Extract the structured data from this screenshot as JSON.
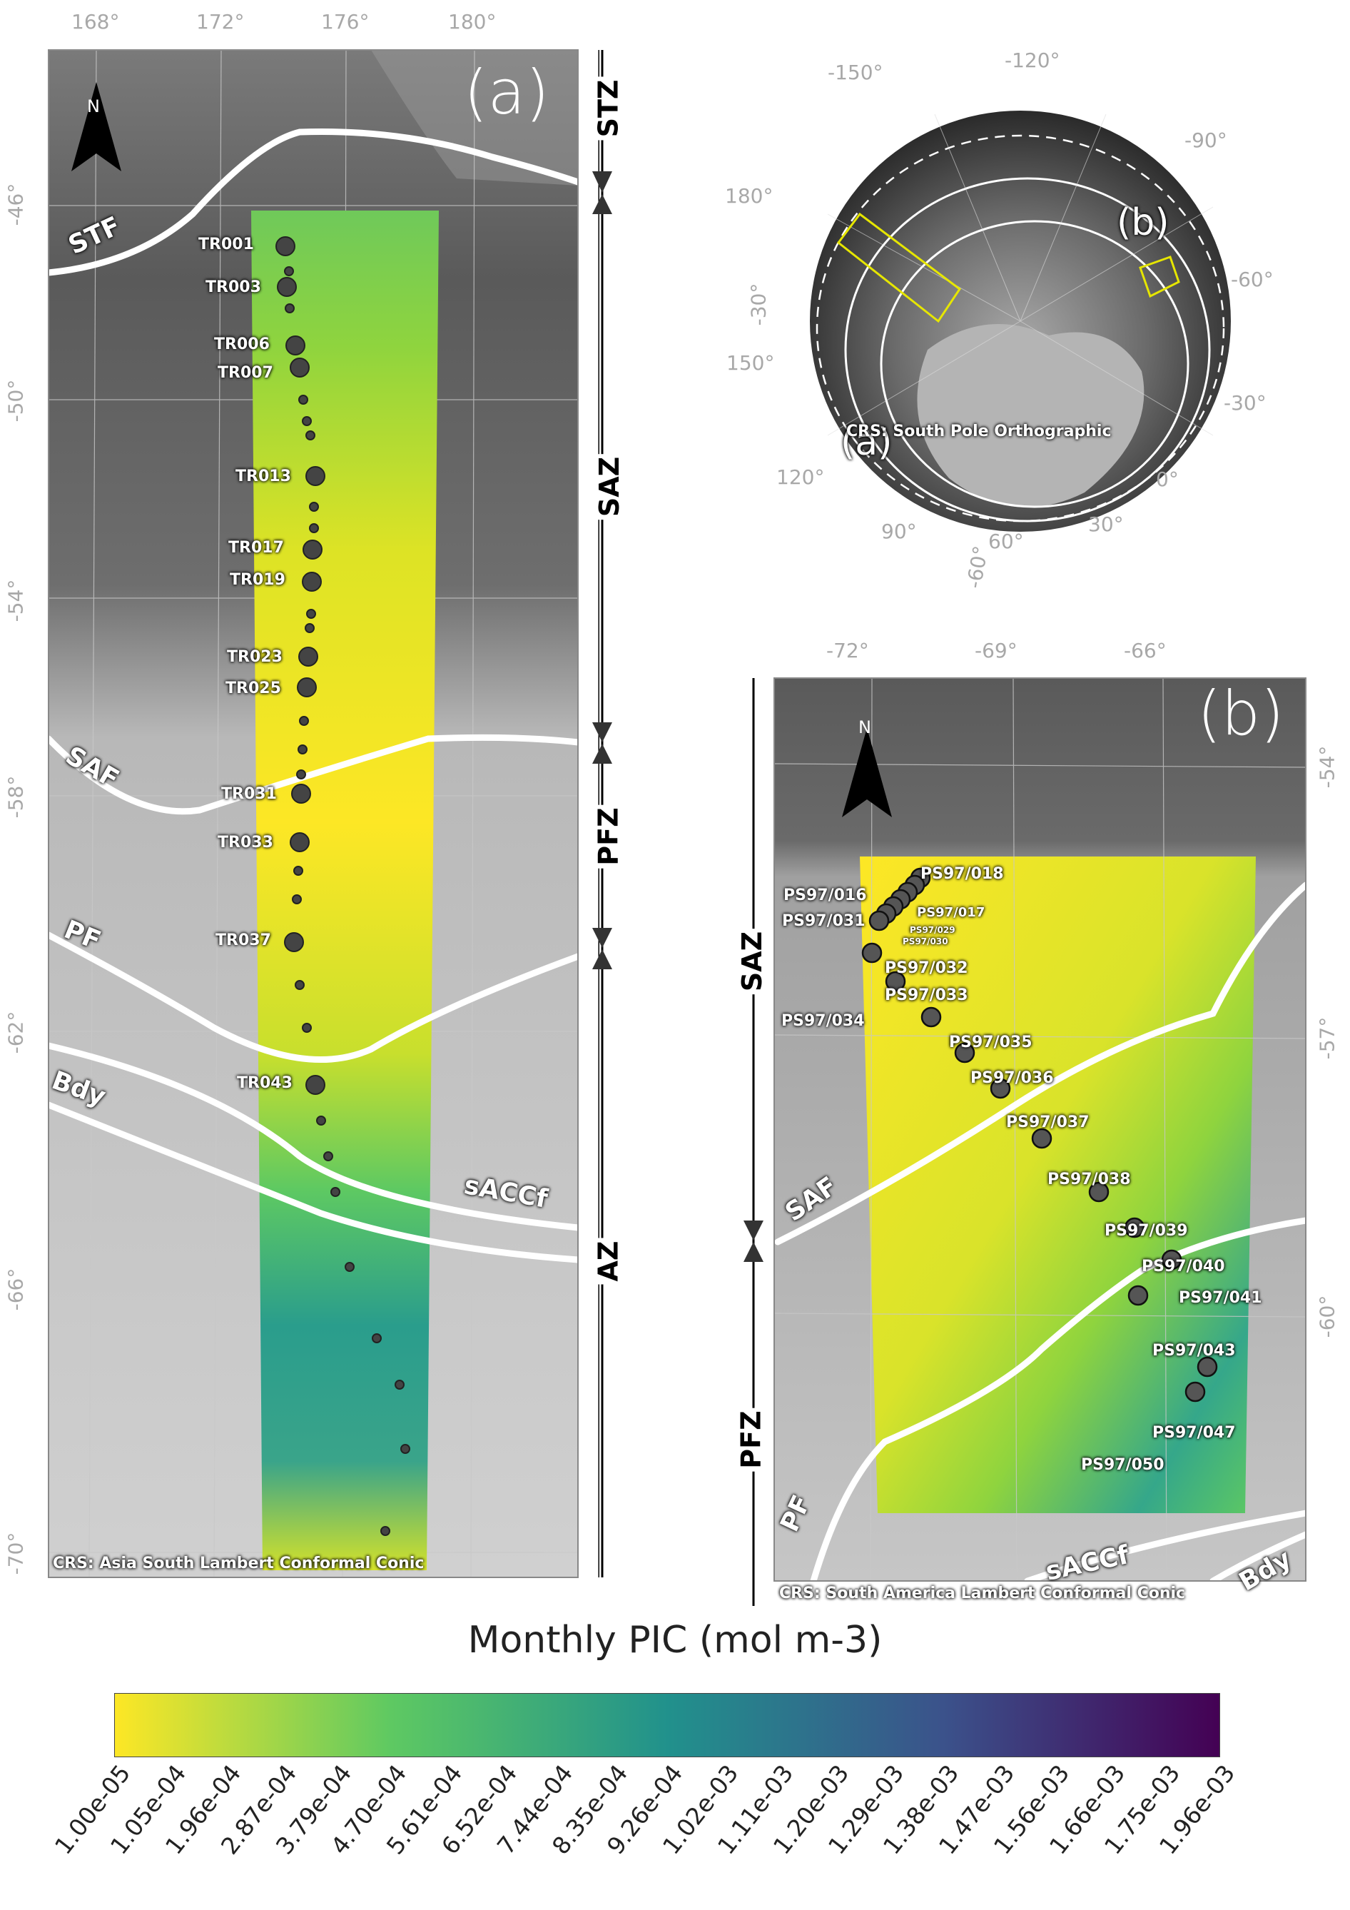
{
  "panel_a": {
    "letter": "(a)",
    "crs": "CRS: Asia South Lambert Conformal Conic",
    "north": "N",
    "lon_labels": [
      "168°",
      "172°",
      "176°",
      "180°"
    ],
    "lat_labels": [
      "-46°",
      "-50°",
      "-54°",
      "-58°",
      "-62°",
      "-66°",
      "-70°"
    ],
    "fronts": [
      "STF",
      "SAF",
      "PF",
      "Bdy",
      "sACCf"
    ],
    "zones": [
      "STZ",
      "SAZ",
      "PFZ",
      "AZ"
    ],
    "stations": [
      "TR001",
      "TR003",
      "TR006",
      "TR007",
      "TR013",
      "TR017",
      "TR019",
      "TR023",
      "TR025",
      "TR031",
      "TR033",
      "TR037",
      "TR043"
    ]
  },
  "panel_b": {
    "letter": "(b)",
    "crs": "CRS: South America Lambert Conformal Conic",
    "north": "N",
    "lon_labels": [
      "-72°",
      "-69°",
      "-66°"
    ],
    "lat_labels": [
      "-54°",
      "-57°",
      "-60°"
    ],
    "fronts": [
      "SAF",
      "PF",
      "sACCf",
      "Bdy"
    ],
    "zones": [
      "SAZ",
      "PFZ"
    ],
    "stations": [
      "PS97/016",
      "PS97/018",
      "PS97/017",
      "PS97/029",
      "PS97/030",
      "PS97/031",
      "PS97/032",
      "PS97/033",
      "PS97/034",
      "PS97/035",
      "PS97/036",
      "PS97/037",
      "PS97/038",
      "PS97/039",
      "PS97/040",
      "PS97/041",
      "PS97/043",
      "PS97/047",
      "PS97/050"
    ]
  },
  "inset": {
    "crs": "CRS: South Pole Orthographic",
    "boxes": [
      "(a)",
      "(b)"
    ],
    "lon_labels": [
      "-150°",
      "-120°",
      "180°",
      "-90°",
      "-60°",
      "150°",
      "-30°",
      "120°",
      "0°",
      "90°",
      "30°",
      "60°"
    ],
    "lat_labels": [
      "-30°",
      "-60°"
    ],
    "box_color": "#e6e600"
  },
  "colorbar": {
    "title": "Monthly PIC (mol m-3)",
    "ticks": [
      "1.00e-05",
      "1.05e-04",
      "1.96e-04",
      "2.87e-04",
      "3.79e-04",
      "4.70e-04",
      "5.61e-04",
      "6.52e-04",
      "7.44e-04",
      "8.35e-04",
      "9.26e-04",
      "1.02e-03",
      "1.11e-03",
      "1.20e-03",
      "1.29e-03",
      "1.38e-03",
      "1.47e-03",
      "1.56e-03",
      "1.66e-03",
      "1.75e-03",
      "1.96e-03"
    ],
    "colors": [
      "#fde725",
      "#5ec962",
      "#21918c",
      "#3b528b",
      "#440154"
    ]
  }
}
